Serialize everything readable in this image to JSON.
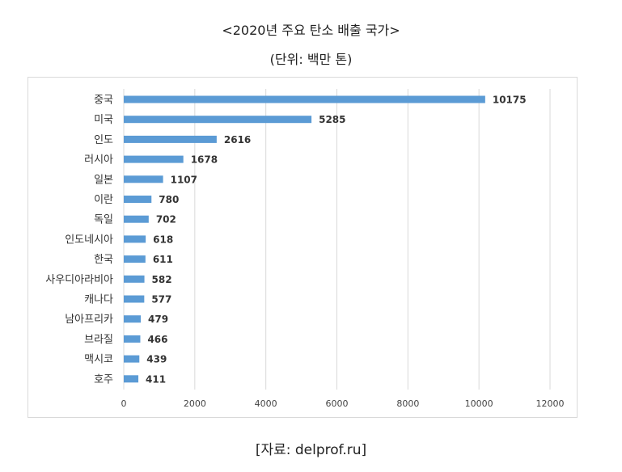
{
  "title": "<2020년 주요 탄소 배출 국가>",
  "subtitle": "(단위: 백만 톤)",
  "source": "[자료: delprof.ru]",
  "chart_data": {
    "type": "bar",
    "orientation": "horizontal",
    "categories": [
      "중국",
      "미국",
      "인도",
      "러시아",
      "일본",
      "이란",
      "독일",
      "인도네시아",
      "한국",
      "사우디아라비아",
      "캐나다",
      "남아프리카",
      "브라질",
      "맥시코",
      "호주"
    ],
    "values": [
      10175,
      5285,
      2616,
      1678,
      1107,
      780,
      702,
      618,
      611,
      582,
      577,
      479,
      466,
      439,
      411
    ],
    "xlim": [
      0,
      12000
    ],
    "xticks": [
      0,
      2000,
      4000,
      6000,
      8000,
      10000,
      12000
    ],
    "grid": true,
    "bar_color": "#5b9bd5"
  }
}
